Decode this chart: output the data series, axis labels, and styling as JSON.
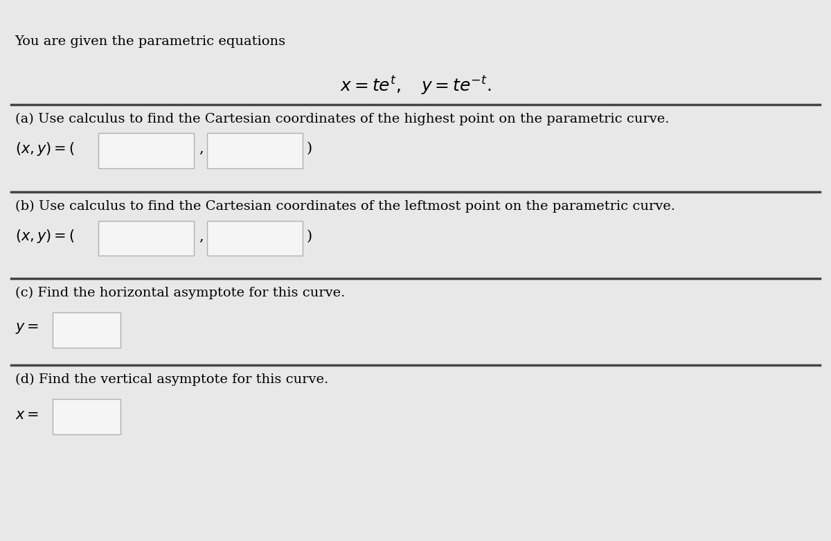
{
  "background_color": "#e8e8e8",
  "input_box_color": "#f5f5f5",
  "input_box_edge": "#b0b0b0",
  "text_color": "#000000",
  "divider_color": "#444444",
  "intro_text": "You are given the parametric equations",
  "equation": "$x = te^{t}, \\quad y = te^{-t}.$",
  "part_a_label": "(a) Use calculus to find the Cartesian coordinates of the highest point on the parametric curve.",
  "part_a_answer_label": "$(x, y) = ($",
  "part_b_label": "(b) Use calculus to find the Cartesian coordinates of the leftmost point on the parametric curve.",
  "part_b_answer_label": "$(x, y) = ($",
  "part_c_label": "(c) Find the horizontal asymptote for this curve.",
  "part_c_answer_label": "$y = $",
  "part_d_label": "(d) Find the vertical asymptote for this curve.",
  "part_d_answer_label": "$x = $",
  "font_size_body": 14,
  "font_size_eq": 18
}
